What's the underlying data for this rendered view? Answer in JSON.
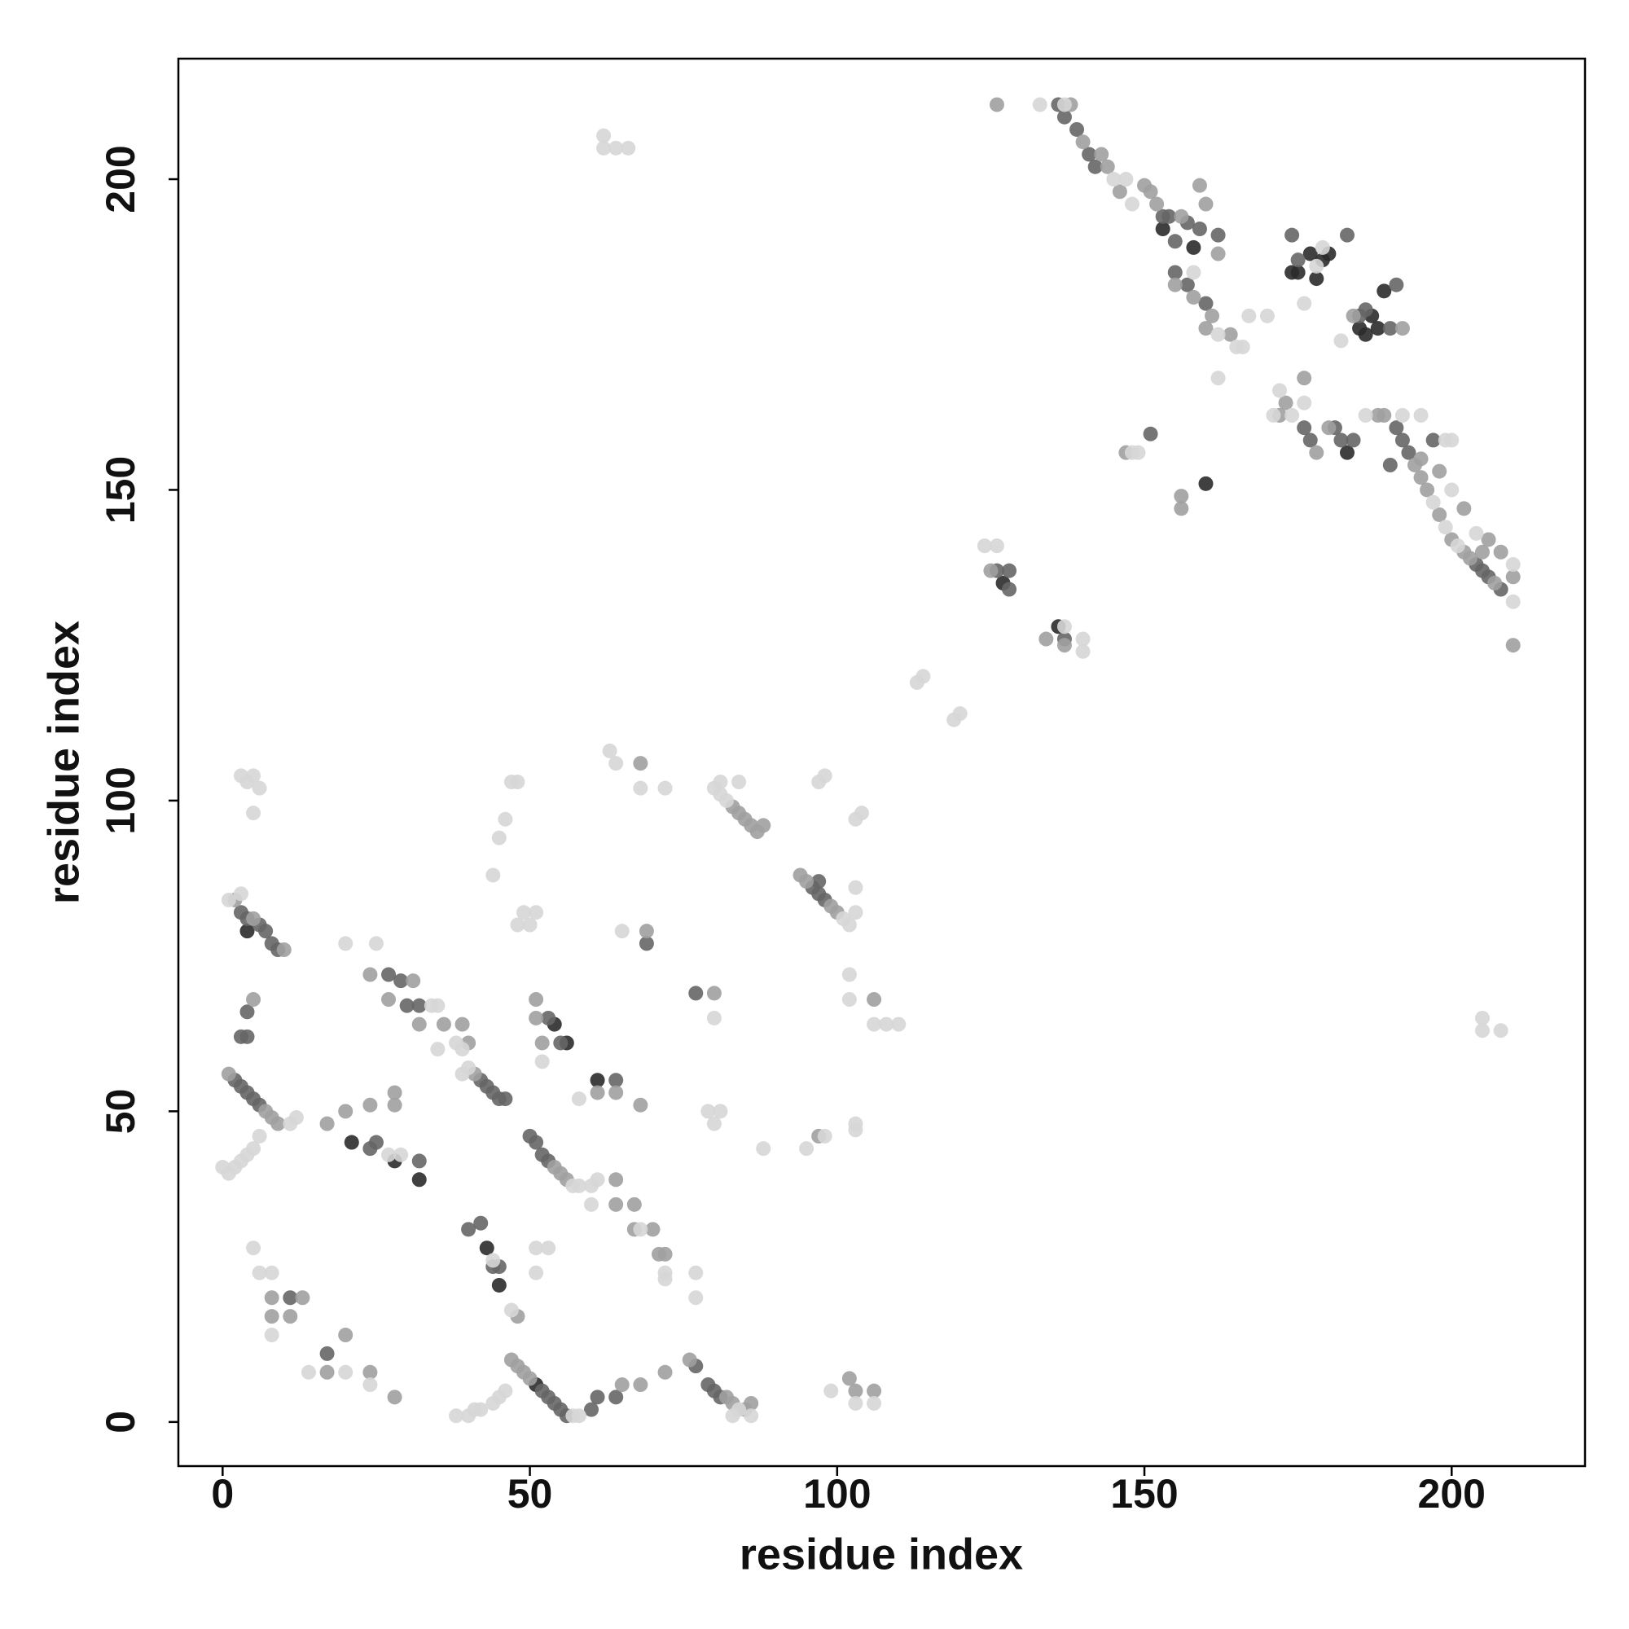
{
  "chart_data": {
    "type": "scatter",
    "xlabel": "residue index",
    "ylabel": "residue index",
    "xlim": [
      -7.2,
      221.7
    ],
    "ylim": [
      -7.1,
      219.4
    ],
    "xticks": [
      0,
      50,
      100,
      150,
      200
    ],
    "yticks": [
      0,
      50,
      100,
      150,
      200
    ],
    "series": [
      {
        "color": "#2b2b2b",
        "x": [
          43,
          45,
          56,
          61,
          28,
          21,
          32,
          174,
          175,
          178,
          177,
          185,
          186,
          188,
          187,
          136,
          127,
          183,
          158,
          160,
          153,
          54,
          4,
          51,
          180,
          189,
          179
        ],
        "y": [
          28,
          22,
          61,
          55,
          42,
          45,
          39,
          185,
          185,
          184,
          188,
          176,
          175,
          176,
          178,
          128,
          135,
          156,
          189,
          151,
          192,
          64,
          79,
          6,
          188,
          182,
          187
        ]
      },
      {
        "color": "#666666",
        "x": [
          2,
          3,
          4,
          5,
          6,
          7,
          8,
          9,
          3,
          4,
          6,
          4,
          3,
          4,
          24,
          25,
          27,
          29,
          30,
          32,
          42,
          43,
          44,
          45,
          46,
          44,
          45,
          50,
          51,
          52,
          53,
          52,
          53,
          54,
          55,
          56,
          79,
          80,
          81,
          77,
          64,
          55,
          53,
          69,
          77,
          11,
          17,
          96,
          97,
          98,
          97,
          126,
          128,
          128,
          137,
          137,
          141,
          142,
          154,
          155,
          157,
          159,
          162,
          155,
          157,
          160,
          182,
          184,
          181,
          177,
          176,
          191,
          192,
          193,
          190,
          197,
          204,
          205,
          206,
          208,
          191,
          190,
          174,
          175,
          183,
          185,
          186,
          32,
          42,
          40,
          61,
          64,
          60,
          151,
          136,
          139,
          153
        ],
        "y": [
          55,
          54,
          53,
          52,
          51,
          79,
          77,
          76,
          82,
          81,
          80,
          66,
          62,
          62,
          44,
          45,
          72,
          71,
          67,
          67,
          55,
          54,
          53,
          52,
          52,
          25,
          25,
          46,
          45,
          43,
          42,
          5,
          4,
          3,
          2,
          1,
          6,
          5,
          4,
          9,
          55,
          61,
          65,
          77,
          69,
          20,
          11,
          86,
          85,
          84,
          87,
          137,
          137,
          134,
          126,
          210,
          204,
          202,
          194,
          190,
          193,
          192,
          191,
          185,
          183,
          180,
          158,
          158,
          160,
          158,
          160,
          160,
          158,
          156,
          154,
          158,
          138,
          137,
          136,
          134,
          183,
          176,
          191,
          187,
          191,
          178,
          179,
          42,
          32,
          31,
          4,
          4,
          2,
          159,
          212,
          208,
          194
        ]
      },
      {
        "color": "#a0a0a0",
        "x": [
          1,
          7,
          8,
          9,
          2,
          5,
          10,
          5,
          20,
          17,
          24,
          28,
          28,
          27,
          31,
          32,
          36,
          39,
          40,
          41,
          48,
          47,
          48,
          49,
          50,
          54,
          55,
          56,
          64,
          64,
          67,
          67,
          70,
          71,
          72,
          51,
          51,
          52,
          61,
          64,
          68,
          69,
          68,
          80,
          76,
          82,
          83,
          85,
          86,
          65,
          68,
          72,
          84,
          85,
          86,
          87,
          88,
          83,
          94,
          95,
          99,
          100,
          103,
          106,
          102,
          97,
          106,
          8,
          8,
          11,
          13,
          17,
          20,
          24,
          24,
          28,
          125,
          134,
          137,
          138,
          140,
          143,
          144,
          146,
          150,
          151,
          156,
          159,
          160,
          162,
          155,
          158,
          161,
          160,
          164,
          172,
          176,
          178,
          180,
          184,
          192,
          194,
          195,
          196,
          198,
          200,
          202,
          203,
          207,
          210,
          210,
          188,
          189,
          195,
          156,
          156,
          126,
          147,
          152,
          173,
          202,
          205,
          206,
          208,
          198
        ],
        "y": [
          56,
          50,
          49,
          48,
          84,
          81,
          76,
          68,
          50,
          48,
          51,
          53,
          51,
          68,
          71,
          64,
          64,
          64,
          61,
          56,
          17,
          10,
          9,
          8,
          7,
          41,
          40,
          39,
          39,
          35,
          35,
          31,
          31,
          27,
          27,
          68,
          65,
          61,
          53,
          53,
          51,
          79,
          106,
          69,
          10,
          4,
          3,
          2,
          3,
          6,
          6,
          8,
          98,
          97,
          96,
          95,
          96,
          99,
          88,
          87,
          83,
          82,
          5,
          5,
          7,
          46,
          68,
          20,
          17,
          17,
          20,
          8,
          14,
          8,
          72,
          4,
          137,
          126,
          125,
          212,
          206,
          204,
          202,
          198,
          199,
          198,
          194,
          199,
          196,
          188,
          183,
          181,
          178,
          176,
          175,
          162,
          168,
          156,
          160,
          178,
          176,
          154,
          152,
          150,
          146,
          142,
          140,
          139,
          135,
          136,
          125,
          162,
          162,
          155,
          149,
          147,
          212,
          156,
          196,
          164,
          147,
          140,
          142,
          140,
          153
        ]
      },
      {
        "color": "#d6d6d6",
        "x": [
          0,
          1,
          2,
          3,
          4,
          5,
          6,
          1,
          3,
          3,
          5,
          4,
          6,
          5,
          11,
          12,
          20,
          25,
          27,
          29,
          34,
          35,
          35,
          38,
          39,
          39,
          40,
          44,
          47,
          46,
          45,
          44,
          42,
          40,
          41,
          38,
          57,
          58,
          57,
          58,
          60,
          61,
          60,
          68,
          72,
          72,
          48,
          47,
          46,
          45,
          44,
          50,
          48,
          49,
          51,
          52,
          58,
          63,
          64,
          68,
          72,
          65,
          51,
          53,
          51,
          83,
          86,
          84,
          80,
          77,
          77,
          79,
          80,
          81,
          80,
          81,
          82,
          81,
          84,
          101,
          102,
          103,
          103,
          88,
          95,
          98,
          97,
          98,
          103,
          104,
          102,
          102,
          106,
          108,
          110,
          103,
          103,
          99,
          103,
          106,
          8,
          6,
          8,
          5,
          14,
          20,
          24,
          113,
          114,
          119,
          120,
          124,
          126,
          137,
          140,
          140,
          62,
          62,
          64,
          66,
          133,
          137,
          145,
          147,
          148,
          158,
          162,
          165,
          166,
          162,
          167,
          170,
          171,
          172,
          174,
          176,
          182,
          176,
          178,
          179,
          149,
          148,
          186,
          192,
          195,
          199,
          200,
          200,
          204,
          197,
          199,
          201,
          210,
          210,
          205,
          205,
          208
        ],
        "y": [
          41,
          40,
          41,
          42,
          43,
          44,
          46,
          84,
          85,
          104,
          104,
          103,
          102,
          98,
          48,
          49,
          77,
          77,
          43,
          43,
          67,
          67,
          60,
          61,
          60,
          56,
          57,
          26,
          18,
          5,
          4,
          3,
          2,
          1,
          2,
          1,
          1,
          1,
          38,
          38,
          38,
          39,
          35,
          31,
          24,
          23,
          103,
          103,
          97,
          94,
          88,
          80,
          80,
          82,
          82,
          58,
          52,
          108,
          106,
          102,
          102,
          79,
          28,
          28,
          24,
          1,
          1,
          2,
          65,
          24,
          20,
          50,
          48,
          50,
          102,
          101,
          100,
          103,
          103,
          81,
          80,
          82,
          86,
          44,
          44,
          46,
          103,
          104,
          97,
          98,
          72,
          68,
          64,
          64,
          64,
          48,
          47,
          5,
          3,
          3,
          24,
          24,
          14,
          28,
          8,
          8,
          6,
          119,
          120,
          113,
          114,
          141,
          141,
          128,
          126,
          124,
          207,
          205,
          205,
          205,
          212,
          212,
          200,
          200,
          196,
          185,
          175,
          173,
          173,
          168,
          178,
          178,
          162,
          166,
          162,
          164,
          174,
          180,
          186,
          189,
          156,
          156,
          162,
          162,
          162,
          158,
          158,
          150,
          143,
          148,
          144,
          141,
          138,
          132,
          65,
          63,
          63
        ]
      }
    ]
  }
}
